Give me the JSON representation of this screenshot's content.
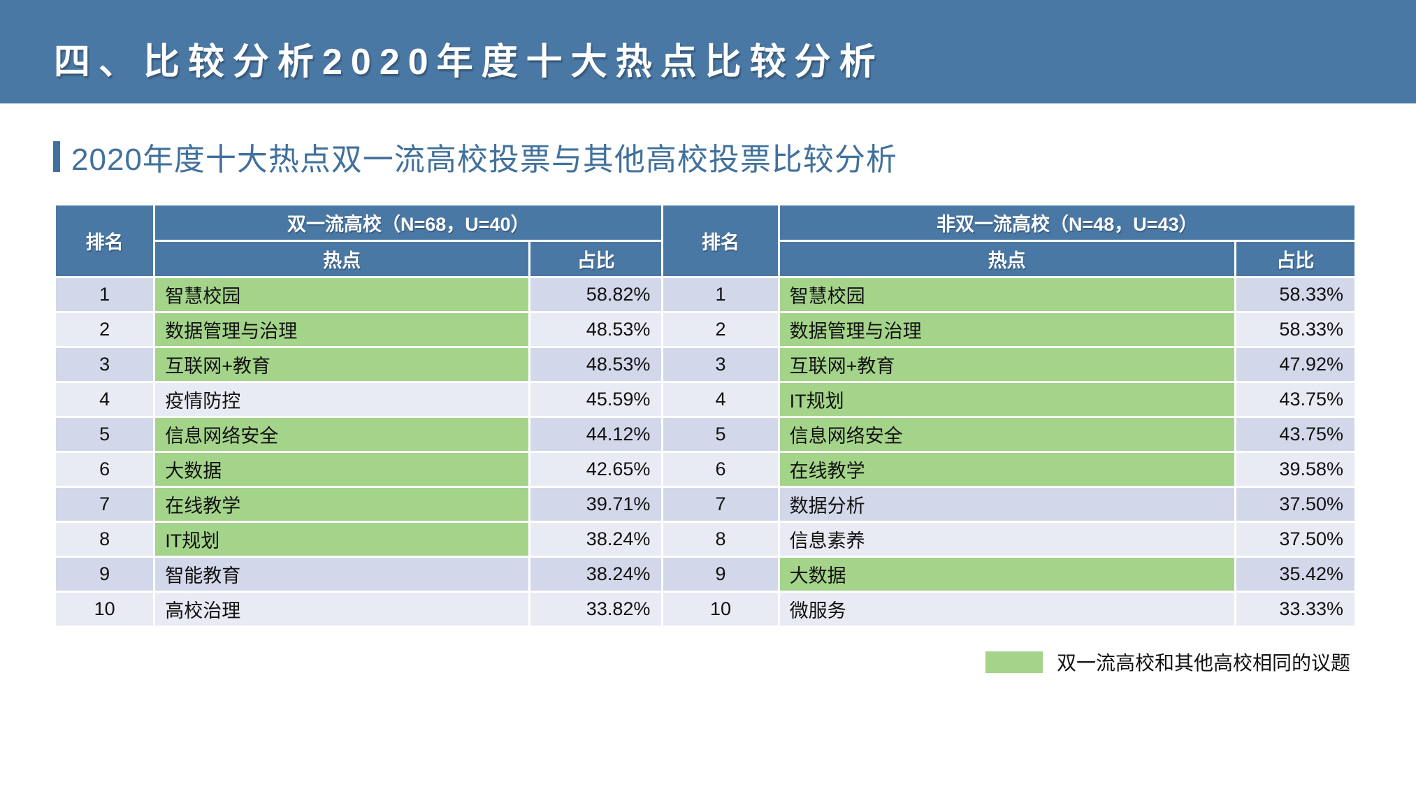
{
  "colors": {
    "header_blue": "#4A78A4",
    "green_highlight": "#A4D38A",
    "band_odd": "#D2D7E9",
    "band_even": "#E9EBF4",
    "subtitle_blue": "#41719C",
    "text_dark": "#111111"
  },
  "header": {
    "title": "四、比较分析2020年度十大热点比较分析"
  },
  "subtitle": "2020年度十大热点双一流高校投票与其他高校投票比较分析",
  "table": {
    "rank_header": "排名",
    "left_group_header": "双一流高校（N=68，U=40）",
    "right_group_header": "非双一流高校（N=48，U=43）",
    "topic_header": "热点",
    "share_header": "占比",
    "rows": [
      {
        "rank": "1",
        "left": {
          "topic": "智慧校园",
          "pct": "58.82%",
          "shared": true
        },
        "right": {
          "topic": "智慧校园",
          "pct": "58.33%",
          "shared": true
        }
      },
      {
        "rank": "2",
        "left": {
          "topic": "数据管理与治理",
          "pct": "48.53%",
          "shared": true
        },
        "right": {
          "topic": "数据管理与治理",
          "pct": "58.33%",
          "shared": true
        }
      },
      {
        "rank": "3",
        "left": {
          "topic": "互联网+教育",
          "pct": "48.53%",
          "shared": true
        },
        "right": {
          "topic": "互联网+教育",
          "pct": "47.92%",
          "shared": true
        }
      },
      {
        "rank": "4",
        "left": {
          "topic": "疫情防控",
          "pct": "45.59%",
          "shared": false
        },
        "right": {
          "topic": "IT规划",
          "pct": "43.75%",
          "shared": true
        }
      },
      {
        "rank": "5",
        "left": {
          "topic": "信息网络安全",
          "pct": "44.12%",
          "shared": true
        },
        "right": {
          "topic": "信息网络安全",
          "pct": "43.75%",
          "shared": true
        }
      },
      {
        "rank": "6",
        "left": {
          "topic": "大数据",
          "pct": "42.65%",
          "shared": true
        },
        "right": {
          "topic": "在线教学",
          "pct": "39.58%",
          "shared": true
        }
      },
      {
        "rank": "7",
        "left": {
          "topic": "在线教学",
          "pct": "39.71%",
          "shared": true
        },
        "right": {
          "topic": "数据分析",
          "pct": "37.50%",
          "shared": false
        }
      },
      {
        "rank": "8",
        "left": {
          "topic": "IT规划",
          "pct": "38.24%",
          "shared": true
        },
        "right": {
          "topic": "信息素养",
          "pct": "37.50%",
          "shared": false
        }
      },
      {
        "rank": "9",
        "left": {
          "topic": "智能教育",
          "pct": "38.24%",
          "shared": false
        },
        "right": {
          "topic": "大数据",
          "pct": "35.42%",
          "shared": true
        }
      },
      {
        "rank": "10",
        "left": {
          "topic": "高校治理",
          "pct": "33.82%",
          "shared": false
        },
        "right": {
          "topic": "微服务",
          "pct": "33.33%",
          "shared": false
        }
      }
    ]
  },
  "legend": {
    "label": "双一流高校和其他高校相同的议题"
  }
}
